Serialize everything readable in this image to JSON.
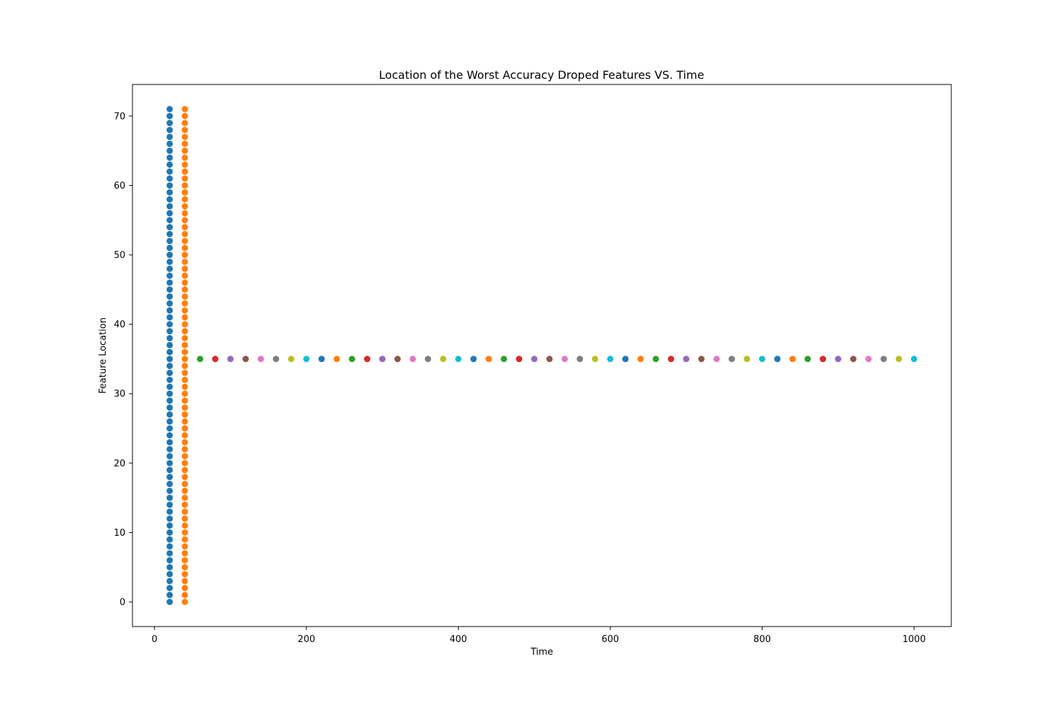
{
  "chart_data": {
    "type": "scatter",
    "title": "Location of the Worst Accuracy Droped Features VS. Time",
    "xlabel": "Time",
    "ylabel": "Feature Location",
    "xlim": [
      -29,
      1049
    ],
    "ylim": [
      -3.55,
      74.55
    ],
    "xticks": [
      0,
      200,
      400,
      600,
      800,
      1000
    ],
    "yticks": [
      0,
      10,
      20,
      30,
      40,
      50,
      60,
      70
    ],
    "grid": false,
    "legend": "none",
    "palette": [
      "#1f77b4",
      "#ff7f0e",
      "#2ca02c",
      "#d62728",
      "#9467bd",
      "#8c564b",
      "#e377c2",
      "#7f7f7f",
      "#bcbd22",
      "#17becf"
    ],
    "series": [
      {
        "x": [
          20
        ],
        "y_range": [
          0,
          71
        ],
        "color": "#1f77b4"
      },
      {
        "x": [
          40
        ],
        "y_range": [
          0,
          71
        ],
        "color": "#ff7f0e"
      },
      {
        "x": [
          60
        ],
        "y": [
          35
        ],
        "color": "#2ca02c"
      },
      {
        "x": [
          80
        ],
        "y": [
          35
        ],
        "color": "#d62728"
      },
      {
        "x": [
          100
        ],
        "y": [
          35
        ],
        "color": "#9467bd"
      },
      {
        "x": [
          120
        ],
        "y": [
          35
        ],
        "color": "#8c564b"
      },
      {
        "x": [
          140
        ],
        "y": [
          35
        ],
        "color": "#e377c2"
      },
      {
        "x": [
          160
        ],
        "y": [
          35
        ],
        "color": "#7f7f7f"
      },
      {
        "x": [
          180
        ],
        "y": [
          35
        ],
        "color": "#bcbd22"
      },
      {
        "x": [
          200
        ],
        "y": [
          35
        ],
        "color": "#17becf"
      },
      {
        "x": [
          220
        ],
        "y": [
          35
        ],
        "color": "#1f77b4"
      },
      {
        "x": [
          240
        ],
        "y": [
          35
        ],
        "color": "#ff7f0e"
      },
      {
        "x": [
          260
        ],
        "y": [
          35
        ],
        "color": "#2ca02c"
      },
      {
        "x": [
          280
        ],
        "y": [
          35
        ],
        "color": "#d62728"
      },
      {
        "x": [
          300
        ],
        "y": [
          35
        ],
        "color": "#9467bd"
      },
      {
        "x": [
          320
        ],
        "y": [
          35
        ],
        "color": "#8c564b"
      },
      {
        "x": [
          340
        ],
        "y": [
          35
        ],
        "color": "#e377c2"
      },
      {
        "x": [
          360
        ],
        "y": [
          35
        ],
        "color": "#7f7f7f"
      },
      {
        "x": [
          380
        ],
        "y": [
          35
        ],
        "color": "#bcbd22"
      },
      {
        "x": [
          400
        ],
        "y": [
          35
        ],
        "color": "#17becf"
      },
      {
        "x": [
          420
        ],
        "y": [
          35
        ],
        "color": "#1f77b4"
      },
      {
        "x": [
          440
        ],
        "y": [
          35
        ],
        "color": "#ff7f0e"
      },
      {
        "x": [
          460
        ],
        "y": [
          35
        ],
        "color": "#2ca02c"
      },
      {
        "x": [
          480
        ],
        "y": [
          35
        ],
        "color": "#d62728"
      },
      {
        "x": [
          500
        ],
        "y": [
          35
        ],
        "color": "#9467bd"
      },
      {
        "x": [
          520
        ],
        "y": [
          35
        ],
        "color": "#8c564b"
      },
      {
        "x": [
          540
        ],
        "y": [
          35
        ],
        "color": "#e377c2"
      },
      {
        "x": [
          560
        ],
        "y": [
          35
        ],
        "color": "#7f7f7f"
      },
      {
        "x": [
          580
        ],
        "y": [
          35
        ],
        "color": "#bcbd22"
      },
      {
        "x": [
          600
        ],
        "y": [
          35
        ],
        "color": "#17becf"
      },
      {
        "x": [
          620
        ],
        "y": [
          35
        ],
        "color": "#1f77b4"
      },
      {
        "x": [
          640
        ],
        "y": [
          35
        ],
        "color": "#ff7f0e"
      },
      {
        "x": [
          660
        ],
        "y": [
          35
        ],
        "color": "#2ca02c"
      },
      {
        "x": [
          680
        ],
        "y": [
          35
        ],
        "color": "#d62728"
      },
      {
        "x": [
          700
        ],
        "y": [
          35
        ],
        "color": "#9467bd"
      },
      {
        "x": [
          720
        ],
        "y": [
          35
        ],
        "color": "#8c564b"
      },
      {
        "x": [
          740
        ],
        "y": [
          35
        ],
        "color": "#e377c2"
      },
      {
        "x": [
          760
        ],
        "y": [
          35
        ],
        "color": "#7f7f7f"
      },
      {
        "x": [
          780
        ],
        "y": [
          35
        ],
        "color": "#bcbd22"
      },
      {
        "x": [
          800
        ],
        "y": [
          35
        ],
        "color": "#17becf"
      },
      {
        "x": [
          820
        ],
        "y": [
          35
        ],
        "color": "#1f77b4"
      },
      {
        "x": [
          840
        ],
        "y": [
          35
        ],
        "color": "#ff7f0e"
      },
      {
        "x": [
          860
        ],
        "y": [
          35
        ],
        "color": "#2ca02c"
      },
      {
        "x": [
          880
        ],
        "y": [
          35
        ],
        "color": "#d62728"
      },
      {
        "x": [
          900
        ],
        "y": [
          35
        ],
        "color": "#9467bd"
      },
      {
        "x": [
          920
        ],
        "y": [
          35
        ],
        "color": "#8c564b"
      },
      {
        "x": [
          940
        ],
        "y": [
          35
        ],
        "color": "#e377c2"
      },
      {
        "x": [
          960
        ],
        "y": [
          35
        ],
        "color": "#7f7f7f"
      },
      {
        "x": [
          980
        ],
        "y": [
          35
        ],
        "color": "#bcbd22"
      },
      {
        "x": [
          1000
        ],
        "y": [
          35
        ],
        "color": "#17becf"
      }
    ]
  }
}
